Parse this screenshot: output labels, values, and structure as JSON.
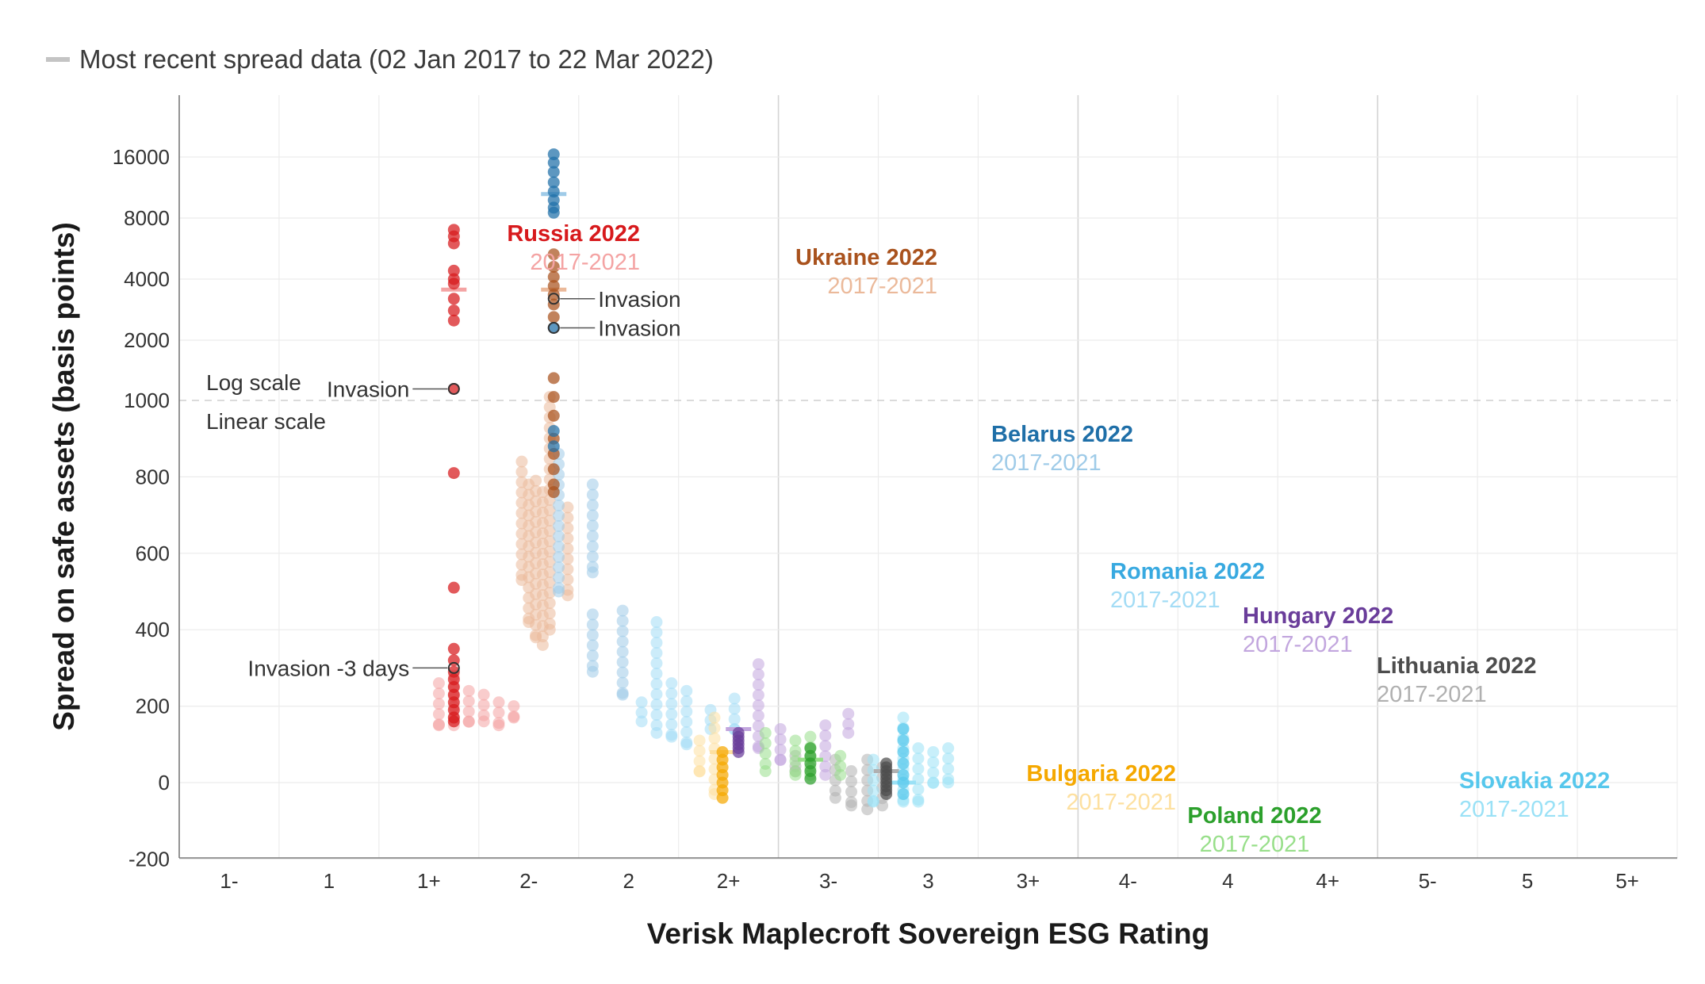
{
  "legend": {
    "label": "Most recent spread data (02 Jan 2017 to 22 Mar 2022)",
    "color": "#c4c4c4"
  },
  "chart_data": {
    "type": "scatter",
    "xlabel": "Verisk Maplecroft Sovereign ESG Rating",
    "ylabel": "Spread on safe assets (basis points)",
    "x_categories": [
      "1-",
      "1",
      "1+",
      "2-",
      "2",
      "2+",
      "3-",
      "3",
      "3+",
      "4-",
      "4",
      "4+",
      "5-",
      "5",
      "5+"
    ],
    "y_ticks": [
      -200,
      0,
      200,
      400,
      600,
      800,
      1000,
      2000,
      4000,
      8000,
      16000
    ],
    "y_scale": "linear from -200 to 1000, log from 1000 to 16000+",
    "scale_notes": {
      "log": "Log scale",
      "linear": "Linear scale"
    },
    "series": [
      {
        "country": "Russia",
        "label_2022": "Russia 2022",
        "label_hist": "2017-2021",
        "color": "#d7191c",
        "hist_color": "#f4a3a3",
        "label_anchor": "left",
        "points_2022": [
          {
            "x": 2.25,
            "ys": [
              7000,
              6500,
              6000,
              4400,
              4000,
              3800,
              3200,
              2800,
              2500,
              1150,
              810,
              510,
              350,
              320,
              290,
              270,
              250,
              230,
              210,
              190,
              170,
              160
            ]
          }
        ],
        "points_hist": [
          {
            "x": 2.1,
            "min": 150,
            "max": 260
          },
          {
            "x": 2.25,
            "min": 150,
            "max": 280
          },
          {
            "x": 2.4,
            "min": 160,
            "max": 240
          },
          {
            "x": 2.55,
            "min": 160,
            "max": 230
          },
          {
            "x": 2.7,
            "min": 150,
            "max": 210
          },
          {
            "x": 2.85,
            "min": 170,
            "max": 200
          }
        ],
        "recent": 3550,
        "annotations": [
          {
            "text": "Invasion",
            "y": 1150
          },
          {
            "text": "Invasion -3 days",
            "y": 300
          }
        ]
      },
      {
        "country": "Ukraine",
        "label_2022": "Ukraine 2022",
        "label_hist": "2017-2021",
        "color": "#a9521d",
        "hist_color": "#ebb99a",
        "label_anchor": "left",
        "points_2022": [
          {
            "x": 3.25,
            "ys": [
              5300,
              4600,
              4100,
              3700,
              3350,
              3000,
              2600,
              1300,
              1050,
              960,
              900,
              860,
              820,
              780,
              760
            ]
          }
        ],
        "points_hist": [
          {
            "x": 2.93,
            "min": 530,
            "max": 840
          },
          {
            "x": 3.0,
            "min": 420,
            "max": 780
          },
          {
            "x": 3.07,
            "min": 380,
            "max": 790
          },
          {
            "x": 3.14,
            "min": 360,
            "max": 760
          },
          {
            "x": 3.21,
            "min": 400,
            "max": 1050
          },
          {
            "x": 3.39,
            "min": 490,
            "max": 720
          }
        ],
        "recent": 3550,
        "annotations": [
          {
            "text": "Invasion",
            "y": 3200
          }
        ]
      },
      {
        "country": "Belarus",
        "label_2022": "Belarus 2022",
        "label_hist": "2017-2021",
        "color": "#1f6fa8",
        "hist_color": "#9fcbe8",
        "label_anchor": "left",
        "points_2022": [
          {
            "x": 3.25,
            "ys": [
              16500,
              15000,
              13500,
              12000,
              10800,
              9800,
              9000,
              8500,
              2300,
              920,
              880
            ]
          }
        ],
        "points_hist": [
          {
            "x": 3.3,
            "min": 500,
            "max": 860
          },
          {
            "x": 3.64,
            "min": 550,
            "max": 780
          },
          {
            "x": 3.64,
            "min": 290,
            "max": 440
          },
          {
            "x": 3.94,
            "min": 230,
            "max": 450
          }
        ],
        "recent": 10500,
        "annotations": [
          {
            "text": "Invasion",
            "y": 2300
          }
        ]
      },
      {
        "country": "Romania",
        "label_2022": "Romania 2022",
        "label_hist": "2017-2021",
        "color": "#38a9e0",
        "hist_color": "#a3dcf5",
        "label_anchor": "left",
        "points_2022": [],
        "points_hist": [
          {
            "x": 4.13,
            "min": 160,
            "max": 210
          },
          {
            "x": 4.28,
            "min": 130,
            "max": 420
          },
          {
            "x": 4.43,
            "min": 120,
            "max": 260
          },
          {
            "x": 4.58,
            "min": 100,
            "max": 240
          },
          {
            "x": 4.82,
            "min": 140,
            "max": 190
          },
          {
            "x": 5.06,
            "min": 140,
            "max": 220
          }
        ],
        "recent": null,
        "annotations": []
      },
      {
        "country": "Hungary",
        "label_2022": "Hungary 2022",
        "label_hist": "2017-2021",
        "color": "#6a3d9a",
        "hist_color": "#c2a6de",
        "label_anchor": "left",
        "points_2022": [
          {
            "x": 5.1,
            "ys": [
              130,
              120,
              110,
              100,
              90,
              80
            ]
          }
        ],
        "points_hist": [
          {
            "x": 5.3,
            "min": 90,
            "max": 310
          },
          {
            "x": 5.52,
            "min": 60,
            "max": 140
          },
          {
            "x": 5.97,
            "min": 20,
            "max": 150
          },
          {
            "x": 6.2,
            "min": 130,
            "max": 180
          }
        ],
        "recent": 140,
        "annotations": []
      },
      {
        "country": "Lithuania",
        "label_2022": "Lithuania 2022",
        "label_hist": "2017-2021",
        "color": "#4d4d4d",
        "hist_color": "#b0b0b0",
        "label_anchor": "left",
        "points_2022": [
          {
            "x": 6.58,
            "ys": [
              50,
              40,
              30,
              20,
              10,
              0,
              -10,
              -20,
              -30
            ]
          }
        ],
        "points_hist": [
          {
            "x": 5.67,
            "min": 30,
            "max": 70
          },
          {
            "x": 6.07,
            "min": -40,
            "max": 60
          },
          {
            "x": 6.23,
            "min": -60,
            "max": 30
          },
          {
            "x": 6.39,
            "min": -70,
            "max": 60
          },
          {
            "x": 6.54,
            "min": -60,
            "max": 40
          }
        ],
        "recent": 30,
        "annotations": []
      },
      {
        "country": "Bulgaria",
        "label_2022": "Bulgaria 2022",
        "label_hist": "2017-2021",
        "color": "#f5a800",
        "hist_color": "#fde0a0",
        "label_anchor": "right",
        "points_2022": [
          {
            "x": 4.94,
            "ys": [
              80,
              60,
              40,
              20,
              0,
              -20,
              -40
            ]
          }
        ],
        "points_hist": [
          {
            "x": 4.71,
            "min": 30,
            "max": 110
          },
          {
            "x": 4.86,
            "min": -30,
            "max": 170
          }
        ],
        "recent": 80,
        "annotations": []
      },
      {
        "country": "Poland",
        "label_2022": "Poland 2022",
        "label_hist": "2017-2021",
        "color": "#2ca02c",
        "hist_color": "#98df8a",
        "label_anchor": "center",
        "points_2022": [
          {
            "x": 5.82,
            "ys": [
              90,
              70,
              50,
              30,
              10
            ]
          }
        ],
        "points_hist": [
          {
            "x": 5.37,
            "min": 30,
            "max": 130
          },
          {
            "x": 5.67,
            "min": 20,
            "max": 110
          },
          {
            "x": 5.82,
            "min": 20,
            "max": 120
          },
          {
            "x": 6.12,
            "min": 20,
            "max": 70
          }
        ],
        "recent": 60,
        "annotations": []
      },
      {
        "country": "Slovakia",
        "label_2022": "Slovakia 2022",
        "label_hist": "2017-2021",
        "color": "#56c7ec",
        "hist_color": "#9ae1f6",
        "label_anchor": "left",
        "points_2022": [
          {
            "x": 6.75,
            "ys": [
              140,
              110,
              80,
              50,
              20,
              0,
              -30
            ]
          }
        ],
        "points_hist": [
          {
            "x": 6.45,
            "min": -50,
            "max": 60
          },
          {
            "x": 6.75,
            "min": -50,
            "max": 170
          },
          {
            "x": 6.9,
            "min": -50,
            "max": 90
          },
          {
            "x": 7.05,
            "min": 0,
            "max": 80
          },
          {
            "x": 7.2,
            "min": 0,
            "max": 90
          }
        ],
        "recent": 0,
        "annotations": []
      }
    ]
  }
}
